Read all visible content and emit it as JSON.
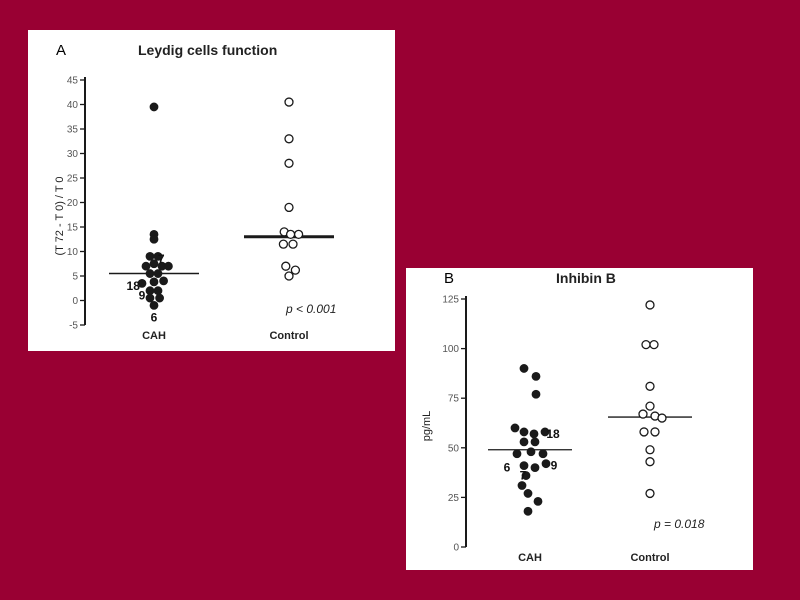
{
  "chart_data": [
    {
      "type": "scatter",
      "panel_letter": "A",
      "title": "Leydig cells function",
      "ylabel": "(T 72 - T 0) / T 0",
      "categories": [
        "CAH",
        "Control"
      ],
      "ylim": [
        -5,
        45
      ],
      "yticks": [
        -5,
        0,
        5,
        10,
        15,
        20,
        25,
        30,
        35,
        40,
        45
      ],
      "annotation": "p < 0.001",
      "series": [
        {
          "category": "CAH",
          "marker": "filled",
          "median": 5.5,
          "points": [
            {
              "x": 0,
              "y": 39.5
            },
            {
              "x": 0,
              "y": 13.5
            },
            {
              "x": 0,
              "y": 12.5
            },
            {
              "x": -0.5,
              "y": 9.0
            },
            {
              "x": 0.5,
              "y": 9.0
            },
            {
              "x": -1,
              "y": 7.0
            },
            {
              "x": 0,
              "y": 7.5
            },
            {
              "x": 1,
              "y": 7.0
            },
            {
              "x": 1.8,
              "y": 7.0
            },
            {
              "x": -0.5,
              "y": 5.5
            },
            {
              "x": 0.5,
              "y": 5.5
            },
            {
              "x": -1.5,
              "y": 3.5
            },
            {
              "x": 0,
              "y": 3.8
            },
            {
              "x": 1.2,
              "y": 4.0
            },
            {
              "x": -0.5,
              "y": 2.0
            },
            {
              "x": 0.5,
              "y": 2.0
            },
            {
              "x": -0.5,
              "y": 0.5
            },
            {
              "x": 0.7,
              "y": 0.5
            },
            {
              "x": 0,
              "y": -1.0
            }
          ]
        },
        {
          "category": "Control",
          "marker": "open",
          "median": 13.0,
          "points": [
            {
              "x": 0,
              "y": 40.5
            },
            {
              "x": 0,
              "y": 33.0
            },
            {
              "x": 0,
              "y": 28.0
            },
            {
              "x": 0,
              "y": 19.0
            },
            {
              "x": -0.6,
              "y": 14.0
            },
            {
              "x": 0.2,
              "y": 13.5
            },
            {
              "x": 1.2,
              "y": 13.5
            },
            {
              "x": -0.7,
              "y": 11.5
            },
            {
              "x": 0.5,
              "y": 11.5
            },
            {
              "x": -0.4,
              "y": 7.0
            },
            {
              "x": 0.8,
              "y": 6.2
            },
            {
              "x": 0,
              "y": 5.0
            }
          ]
        }
      ],
      "point_labels": [
        {
          "text": "7",
          "category": "CAH",
          "x": 0.9,
          "y": 8.5
        },
        {
          "text": "18",
          "category": "CAH",
          "x": -2.6,
          "y": 3.0
        },
        {
          "text": "9",
          "category": "CAH",
          "x": -1.5,
          "y": 1.0
        },
        {
          "text": "6",
          "category": "CAH",
          "x": 0,
          "y": -3.5
        }
      ]
    },
    {
      "type": "scatter",
      "panel_letter": "B",
      "title": "Inhibin B",
      "ylabel": "pg/mL",
      "categories": [
        "CAH",
        "Control"
      ],
      "ylim": [
        0,
        125
      ],
      "yticks": [
        0,
        25,
        50,
        75,
        100,
        125
      ],
      "annotation": "p = 0.018",
      "series": [
        {
          "category": "CAH",
          "marker": "filled",
          "median": 49.0,
          "points": [
            {
              "x": -0.6,
              "y": 90
            },
            {
              "x": 0.6,
              "y": 86
            },
            {
              "x": 0.6,
              "y": 77
            },
            {
              "x": -1.5,
              "y": 60
            },
            {
              "x": -0.6,
              "y": 58
            },
            {
              "x": 0.4,
              "y": 57
            },
            {
              "x": 1.5,
              "y": 58
            },
            {
              "x": -0.6,
              "y": 53
            },
            {
              "x": 0.5,
              "y": 53
            },
            {
              "x": -1.3,
              "y": 47
            },
            {
              "x": 0.1,
              "y": 48
            },
            {
              "x": 1.3,
              "y": 47
            },
            {
              "x": -0.6,
              "y": 41
            },
            {
              "x": 0.5,
              "y": 40
            },
            {
              "x": 1.6,
              "y": 42
            },
            {
              "x": -0.4,
              "y": 36
            },
            {
              "x": -0.8,
              "y": 31
            },
            {
              "x": -0.2,
              "y": 27
            },
            {
              "x": 0.8,
              "y": 23
            },
            {
              "x": -0.2,
              "y": 18
            }
          ]
        },
        {
          "category": "Control",
          "marker": "open",
          "median": 65.5,
          "points": [
            {
              "x": 0,
              "y": 122
            },
            {
              "x": -0.4,
              "y": 102
            },
            {
              "x": 0.4,
              "y": 102
            },
            {
              "x": 0,
              "y": 81
            },
            {
              "x": 0,
              "y": 71
            },
            {
              "x": -0.7,
              "y": 67
            },
            {
              "x": 0.5,
              "y": 66
            },
            {
              "x": 1.2,
              "y": 65
            },
            {
              "x": -0.6,
              "y": 58
            },
            {
              "x": 0.5,
              "y": 58
            },
            {
              "x": 0,
              "y": 49
            },
            {
              "x": 0,
              "y": 43
            },
            {
              "x": 0,
              "y": 27
            }
          ]
        }
      ],
      "point_labels": [
        {
          "text": "18",
          "category": "CAH",
          "x": 2.3,
          "y": 57
        },
        {
          "text": "6",
          "category": "CAH",
          "x": -2.3,
          "y": 40
        },
        {
          "text": "7",
          "category": "CAH",
          "x": -0.7,
          "y": 36
        },
        {
          "text": "9",
          "category": "CAH",
          "x": 2.4,
          "y": 41
        }
      ]
    }
  ]
}
